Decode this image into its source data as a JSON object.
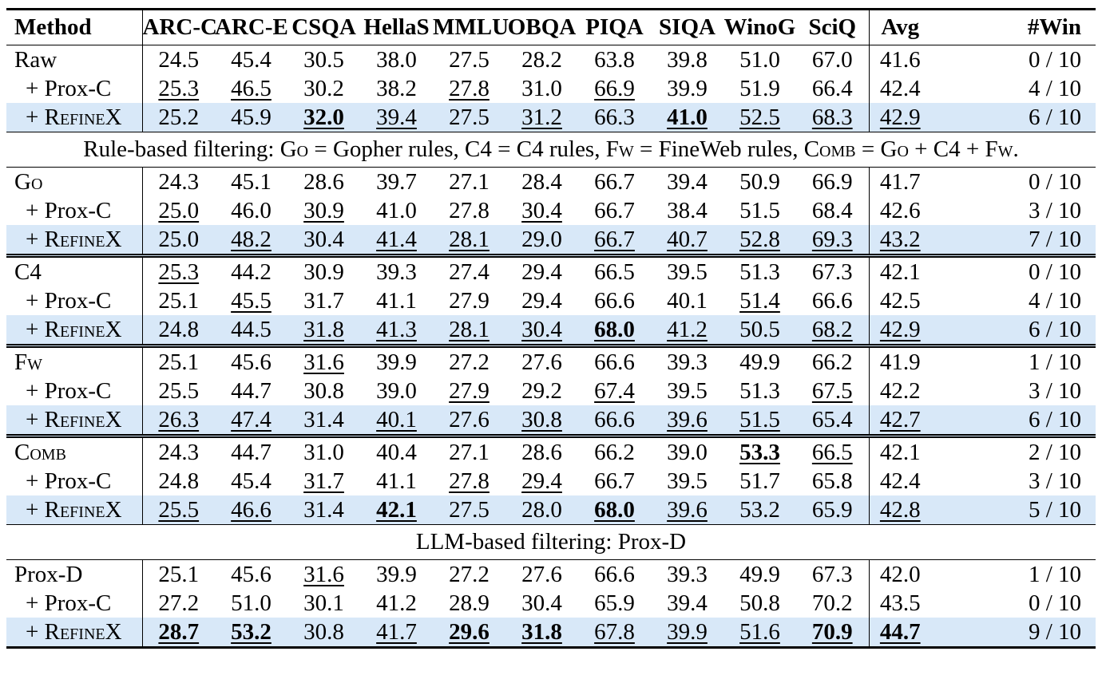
{
  "colors": {
    "highlight_row": "#d8e8f8",
    "rule": "#000000",
    "text": "#000000"
  },
  "table": {
    "columns": [
      "Method",
      "ARC-C",
      "ARC-E",
      "CSQA",
      "HellaS",
      "MMLU",
      "OBQA",
      "PIQA",
      "SIQA",
      "WinoG",
      "SciQ",
      "Avg",
      "#Win"
    ],
    "sections": [
      {
        "separator": "none",
        "rows": [
          {
            "label": "Raw",
            "sc": false,
            "indent": false,
            "highlight": false,
            "v": [
              "24.5",
              "45.4",
              "30.5",
              "38.0",
              "27.5",
              "28.2",
              "63.8",
              "39.8",
              "51.0",
              "67.0",
              "41.6",
              "0 / 10"
            ],
            "s": [
              "",
              "",
              "",
              "",
              "",
              "",
              "",
              "",
              "",
              "",
              "",
              ""
            ]
          },
          {
            "label": "+ Prox-C",
            "sc": false,
            "indent": true,
            "highlight": false,
            "v": [
              "25.3",
              "46.5",
              "30.2",
              "38.2",
              "27.8",
              "31.0",
              "66.9",
              "39.9",
              "51.9",
              "66.4",
              "42.4",
              "4 / 10"
            ],
            "s": [
              "u",
              "u",
              "",
              "",
              "u",
              "",
              "u",
              "",
              "",
              "",
              "",
              ""
            ]
          },
          {
            "label": "+ RefineX",
            "sc": true,
            "indent": true,
            "highlight": true,
            "v": [
              "25.2",
              "45.9",
              "32.0",
              "39.4",
              "27.5",
              "31.2",
              "66.3",
              "41.0",
              "52.5",
              "68.3",
              "42.9",
              "6 / 10"
            ],
            "s": [
              "",
              "",
              "bu",
              "u",
              "",
              "u",
              "",
              "bu",
              "u",
              "u",
              "u",
              ""
            ]
          }
        ]
      },
      {
        "band": [
          {
            "text": "Rule-based filtering: ",
            "sc": false
          },
          {
            "text": "Go",
            "sc": true
          },
          {
            "text": " = Gopher rules, C4 = C4 rules, ",
            "sc": false
          },
          {
            "text": "Fw",
            "sc": true
          },
          {
            "text": " = FineWeb rules, ",
            "sc": false
          },
          {
            "text": "Comb",
            "sc": true
          },
          {
            "text": " = ",
            "sc": false
          },
          {
            "text": "Go",
            "sc": true
          },
          {
            "text": " + C4 + ",
            "sc": false
          },
          {
            "text": "Fw",
            "sc": true
          },
          {
            "text": ".",
            "sc": false
          }
        ]
      },
      {
        "separator": "none",
        "rows": [
          {
            "label": "Go",
            "sc": true,
            "indent": false,
            "highlight": false,
            "v": [
              "24.3",
              "45.1",
              "28.6",
              "39.7",
              "27.1",
              "28.4",
              "66.7",
              "39.4",
              "50.9",
              "66.9",
              "41.7",
              "0 / 10"
            ],
            "s": [
              "",
              "",
              "",
              "",
              "",
              "",
              "",
              "",
              "",
              "",
              "",
              ""
            ]
          },
          {
            "label": "+ Prox-C",
            "sc": false,
            "indent": true,
            "highlight": false,
            "v": [
              "25.0",
              "46.0",
              "30.9",
              "41.0",
              "27.8",
              "30.4",
              "66.7",
              "38.4",
              "51.5",
              "68.4",
              "42.6",
              "3 / 10"
            ],
            "s": [
              "u",
              "",
              "u",
              "",
              "",
              "u",
              "",
              "",
              "",
              "",
              "",
              ""
            ]
          },
          {
            "label": "+ RefineX",
            "sc": true,
            "indent": true,
            "highlight": true,
            "v": [
              "25.0",
              "48.2",
              "30.4",
              "41.4",
              "28.1",
              "29.0",
              "66.7",
              "40.7",
              "52.8",
              "69.3",
              "43.2",
              "7 / 10"
            ],
            "s": [
              "",
              "u",
              "",
              "u",
              "u",
              "",
              "u",
              "u",
              "u",
              "u",
              "u",
              ""
            ]
          }
        ]
      },
      {
        "separator": "double",
        "rows": [
          {
            "label": "C4",
            "sc": false,
            "indent": false,
            "highlight": false,
            "v": [
              "25.3",
              "44.2",
              "30.9",
              "39.3",
              "27.4",
              "29.4",
              "66.5",
              "39.5",
              "51.3",
              "67.3",
              "42.1",
              "0 / 10"
            ],
            "s": [
              "u",
              "",
              "",
              "",
              "",
              "",
              "",
              "",
              "",
              "",
              "",
              ""
            ]
          },
          {
            "label": "+ Prox-C",
            "sc": false,
            "indent": true,
            "highlight": false,
            "v": [
              "25.1",
              "45.5",
              "31.7",
              "41.1",
              "27.9",
              "29.4",
              "66.6",
              "40.1",
              "51.4",
              "66.6",
              "42.5",
              "4 / 10"
            ],
            "s": [
              "",
              "u",
              "",
              "",
              "",
              "",
              "",
              "",
              "u",
              "",
              "",
              ""
            ]
          },
          {
            "label": "+ RefineX",
            "sc": true,
            "indent": true,
            "highlight": true,
            "v": [
              "24.8",
              "44.5",
              "31.8",
              "41.3",
              "28.1",
              "30.4",
              "68.0",
              "41.2",
              "50.5",
              "68.2",
              "42.9",
              "6 / 10"
            ],
            "s": [
              "",
              "",
              "u",
              "u",
              "u",
              "u",
              "bu",
              "u",
              "",
              "u",
              "u",
              ""
            ]
          }
        ]
      },
      {
        "separator": "double",
        "rows": [
          {
            "label": "Fw",
            "sc": true,
            "indent": false,
            "highlight": false,
            "v": [
              "25.1",
              "45.6",
              "31.6",
              "39.9",
              "27.2",
              "27.6",
              "66.6",
              "39.3",
              "49.9",
              "66.2",
              "41.9",
              "1 / 10"
            ],
            "s": [
              "",
              "",
              "u",
              "",
              "",
              "",
              "",
              "",
              "",
              "",
              "",
              ""
            ]
          },
          {
            "label": "+ Prox-C",
            "sc": false,
            "indent": true,
            "highlight": false,
            "v": [
              "25.5",
              "44.7",
              "30.8",
              "39.0",
              "27.9",
              "29.2",
              "67.4",
              "39.5",
              "51.3",
              "67.5",
              "42.2",
              "3 / 10"
            ],
            "s": [
              "",
              "",
              "",
              "",
              "u",
              "",
              "u",
              "",
              "",
              "u",
              "",
              ""
            ]
          },
          {
            "label": "+ RefineX",
            "sc": true,
            "indent": true,
            "highlight": true,
            "v": [
              "26.3",
              "47.4",
              "31.4",
              "40.1",
              "27.6",
              "30.8",
              "66.6",
              "39.6",
              "51.5",
              "65.4",
              "42.7",
              "6 / 10"
            ],
            "s": [
              "u",
              "u",
              "",
              "u",
              "",
              "u",
              "",
              "u",
              "u",
              "",
              "u",
              ""
            ]
          }
        ]
      },
      {
        "separator": "double",
        "rows": [
          {
            "label": "Comb",
            "sc": true,
            "indent": false,
            "highlight": false,
            "v": [
              "24.3",
              "44.7",
              "31.0",
              "40.4",
              "27.1",
              "28.6",
              "66.2",
              "39.0",
              "53.3",
              "66.5",
              "42.1",
              "2 / 10"
            ],
            "s": [
              "",
              "",
              "",
              "",
              "",
              "",
              "",
              "",
              "bu",
              "u",
              "",
              ""
            ]
          },
          {
            "label": "+ Prox-C",
            "sc": false,
            "indent": true,
            "highlight": false,
            "v": [
              "24.8",
              "45.4",
              "31.7",
              "41.1",
              "27.8",
              "29.4",
              "66.7",
              "39.5",
              "51.7",
              "65.8",
              "42.4",
              "3 / 10"
            ],
            "s": [
              "",
              "",
              "u",
              "",
              "u",
              "u",
              "",
              "",
              "",
              "",
              "",
              ""
            ]
          },
          {
            "label": "+ RefineX",
            "sc": true,
            "indent": true,
            "highlight": true,
            "v": [
              "25.5",
              "46.6",
              "31.4",
              "42.1",
              "27.5",
              "28.0",
              "68.0",
              "39.6",
              "53.2",
              "65.9",
              "42.8",
              "5 / 10"
            ],
            "s": [
              "u",
              "u",
              "",
              "bu",
              "",
              "",
              "bu",
              "u",
              "",
              "",
              "u",
              ""
            ]
          }
        ]
      },
      {
        "band": [
          {
            "text": "LLM-based filtering: Prox-D",
            "sc": false
          }
        ]
      },
      {
        "separator": "none",
        "rows": [
          {
            "label": "Prox-D",
            "sc": false,
            "indent": false,
            "highlight": false,
            "v": [
              "25.1",
              "45.6",
              "31.6",
              "39.9",
              "27.2",
              "27.6",
              "66.6",
              "39.3",
              "49.9",
              "67.3",
              "42.0",
              "1 / 10"
            ],
            "s": [
              "",
              "",
              "u",
              "",
              "",
              "",
              "",
              "",
              "",
              "",
              "",
              ""
            ]
          },
          {
            "label": "+ Prox-C",
            "sc": false,
            "indent": true,
            "highlight": false,
            "v": [
              "27.2",
              "51.0",
              "30.1",
              "41.2",
              "28.9",
              "30.4",
              "65.9",
              "39.4",
              "50.8",
              "70.2",
              "43.5",
              "0 / 10"
            ],
            "s": [
              "",
              "",
              "",
              "",
              "",
              "",
              "",
              "",
              "",
              "",
              "",
              ""
            ]
          },
          {
            "label": "+ RefineX",
            "sc": true,
            "indent": true,
            "highlight": true,
            "v": [
              "28.7",
              "53.2",
              "30.8",
              "41.7",
              "29.6",
              "31.8",
              "67.8",
              "39.9",
              "51.6",
              "70.9",
              "44.7",
              "9 / 10"
            ],
            "s": [
              "bu",
              "bu",
              "",
              "u",
              "bu",
              "bu",
              "u",
              "u",
              "u",
              "bu",
              "bu",
              ""
            ]
          }
        ]
      }
    ]
  }
}
